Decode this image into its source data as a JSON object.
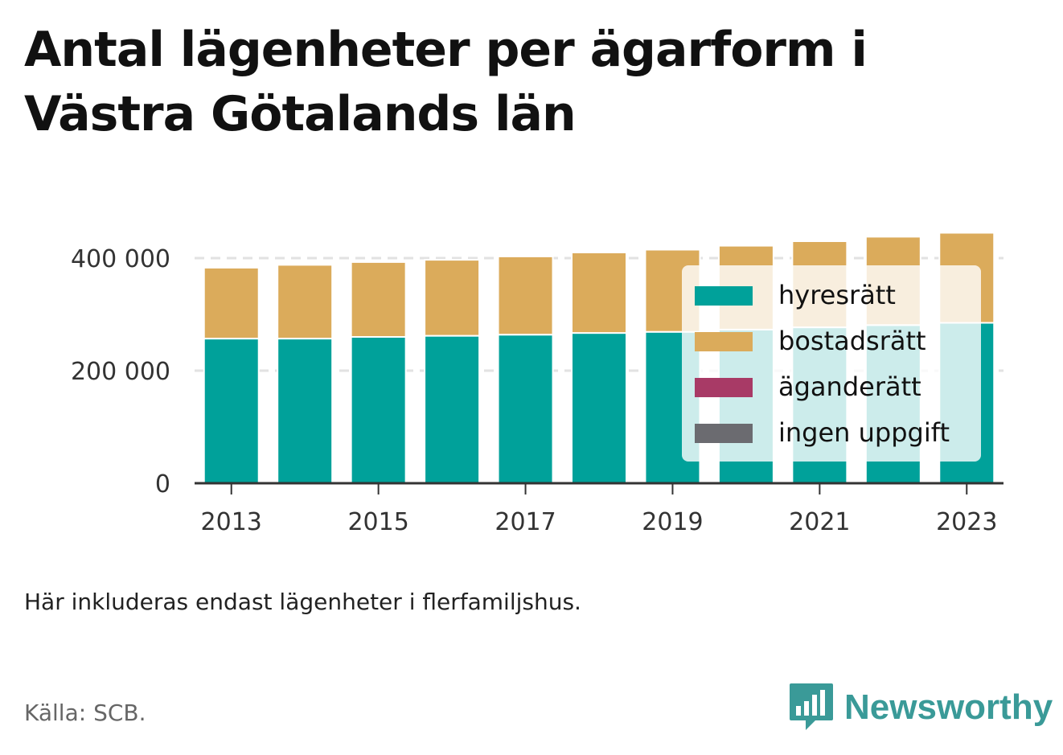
{
  "title": "Antal lägenheter per ägarform i Västra Götalands län",
  "note": "Här inkluderas endast lägenheter i flerfamiljshus.",
  "source": "Källa: SCB.",
  "brand": {
    "name": "Newsworthy",
    "icon": "newsworthy-logo-icon"
  },
  "colors": {
    "hyresratt": "#00a19a",
    "bostadsratt": "#dbab5b",
    "aganderatt": "#a83a66",
    "ingen_uppgift": "#6b6b70",
    "grid": "#e2e2e2",
    "axis": "#333333"
  },
  "chart_data": {
    "type": "bar",
    "stacked": true,
    "categories": [
      "2013",
      "2014",
      "2015",
      "2016",
      "2017",
      "2018",
      "2019",
      "2020",
      "2021",
      "2022",
      "2023"
    ],
    "x_tick_labels": [
      "2013",
      "2015",
      "2017",
      "2019",
      "2021",
      "2023"
    ],
    "y_ticks": [
      0,
      200000,
      400000
    ],
    "y_tick_labels": [
      "0",
      "200 000",
      "400 000"
    ],
    "ylim": [
      0,
      430000
    ],
    "grid": true,
    "legend_position": "right",
    "series": [
      {
        "name": "hyresrätt",
        "color": "#00a19a",
        "values": [
          257000,
          257000,
          260000,
          262000,
          264000,
          267000,
          269000,
          273000,
          277000,
          281000,
          285000
        ]
      },
      {
        "name": "bostadsrätt",
        "color": "#dbab5b",
        "values": [
          126000,
          131000,
          133000,
          135000,
          139000,
          143000,
          146000,
          149000,
          153000,
          157000,
          160000
        ]
      },
      {
        "name": "äganderätt",
        "color": "#a83a66",
        "values": [
          0,
          0,
          0,
          0,
          0,
          0,
          0,
          0,
          0,
          0,
          0
        ]
      },
      {
        "name": "ingen uppgift",
        "color": "#6b6b70",
        "values": [
          0,
          0,
          0,
          0,
          0,
          0,
          0,
          0,
          0,
          0,
          0
        ]
      }
    ]
  }
}
